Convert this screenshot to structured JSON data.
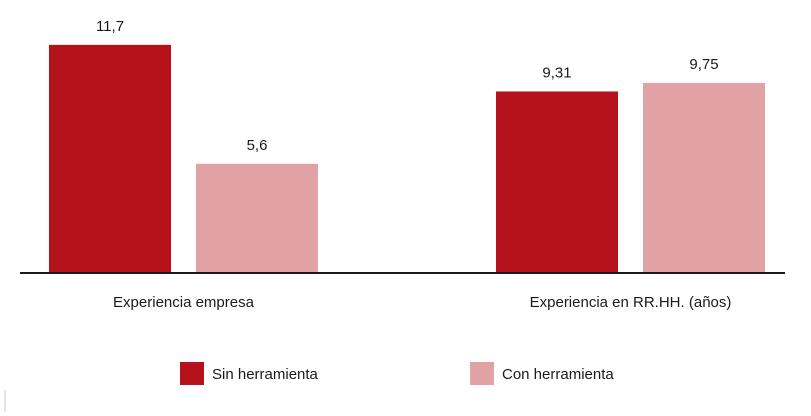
{
  "chart_data": {
    "type": "bar",
    "categories": [
      "Experiencia empresa",
      "Experiencia en RR.HH. (años)"
    ],
    "series": [
      {
        "name": "Sin herramienta",
        "color": "#b5121b",
        "values": [
          11.7,
          9.31
        ],
        "value_labels": [
          "11,7",
          "9,31"
        ]
      },
      {
        "name": "Con herramienta",
        "color": "#e0a2a5",
        "values": [
          5.6,
          9.75
        ],
        "value_labels": [
          "5,6",
          "9,75"
        ]
      }
    ],
    "ylim": [
      0,
      12
    ],
    "legend": "bottom"
  }
}
